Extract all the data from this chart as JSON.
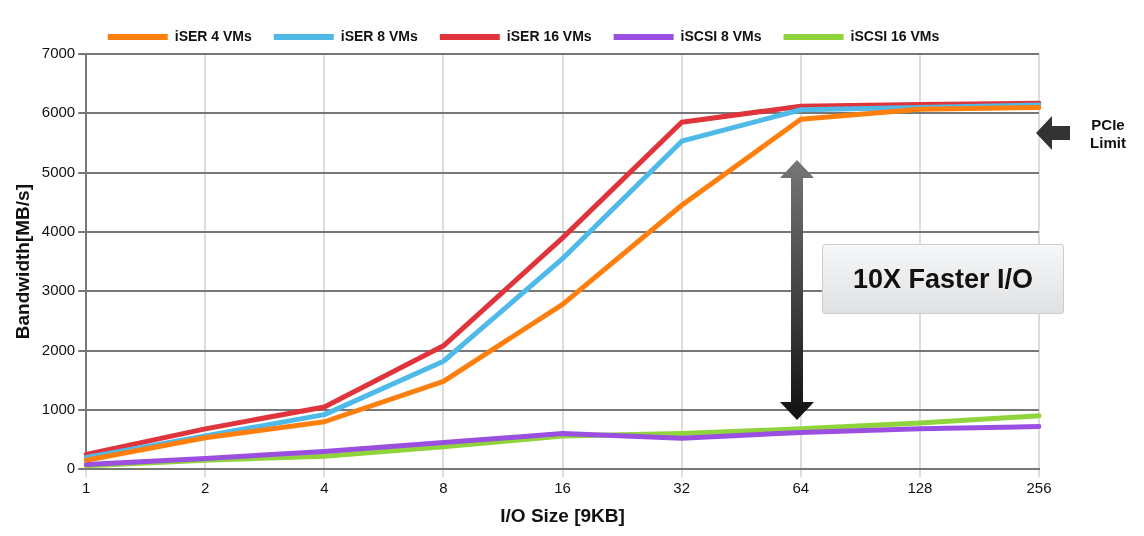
{
  "chart_data": {
    "type": "line",
    "xlabel": "I/O Size [9KB]",
    "ylabel": "Bandwidth[MB/s]",
    "categories": [
      "1",
      "2",
      "4",
      "8",
      "16",
      "32",
      "64",
      "128",
      "256"
    ],
    "series": [
      {
        "name": "iSER 4 VMs",
        "color": "#ff7f0e",
        "values": [
          150,
          530,
          800,
          1480,
          2780,
          4450,
          5900,
          6070,
          6100
        ]
      },
      {
        "name": "iSER 8 VMs",
        "color": "#4fb9e8",
        "values": [
          200,
          560,
          920,
          1820,
          3550,
          5530,
          6060,
          6100,
          6140
        ]
      },
      {
        "name": "iSER 16 VMs",
        "color": "#e0343c",
        "values": [
          250,
          680,
          1050,
          2080,
          3900,
          5850,
          6120,
          6150,
          6170
        ]
      },
      {
        "name": "iSCSI 8 VMs",
        "color": "#9b4fe0",
        "values": [
          80,
          180,
          300,
          450,
          600,
          520,
          620,
          680,
          720
        ]
      },
      {
        "name": "iSCSI 16 VMs",
        "color": "#8fd43a",
        "values": [
          60,
          150,
          220,
          380,
          560,
          600,
          680,
          780,
          900
        ]
      }
    ],
    "ylim": [
      0,
      7000
    ],
    "yticks": [
      0,
      1000,
      2000,
      3000,
      4000,
      5000,
      6000,
      7000
    ],
    "grid": true,
    "legend": "top",
    "marker": "none",
    "line_style": "solid",
    "annotations": [
      "10X Faster I/O",
      "PCIe Limit"
    ]
  }
}
